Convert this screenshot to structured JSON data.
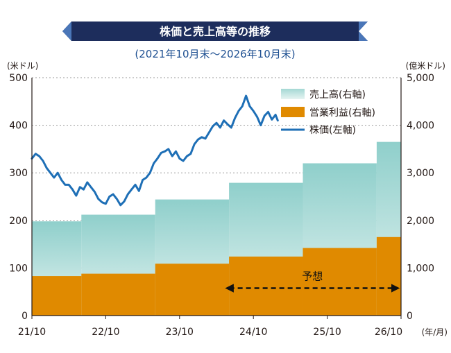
{
  "chart_data": {
    "type": "bar+line",
    "title": "株価と売上高等の推移",
    "subtitle": "(2021年10月末～2026年10月末)",
    "y_left_label": "(米ドル)",
    "y_right_label": "(億米ドル)",
    "x_unit_label": "(年/月)",
    "y_left_range": [
      0,
      500
    ],
    "y_right_range": [
      0,
      5000
    ],
    "y_left_ticks": [
      "0",
      "100",
      "200",
      "300",
      "400",
      "500"
    ],
    "y_right_ticks": [
      "0",
      "1,000",
      "2,000",
      "3,000",
      "4,000",
      "5,000"
    ],
    "x_ticks": [
      "21/10",
      "22/10",
      "23/10",
      "24/10",
      "25/10",
      "26/10"
    ],
    "x_range_years": [
      0,
      5
    ],
    "grid": "horizontal dotted",
    "legend": [
      "売上高(右軸)",
      "営業利益(右軸)",
      "株価(左軸)"
    ],
    "forecast_label": "予想",
    "forecast_range_years": [
      2.6,
      5
    ],
    "colors": {
      "title_bar": "#1d2d5c",
      "revenue_top": "#8fcfcb",
      "revenue_bottom": "#e6f4f2",
      "operating_income": "#e08a00",
      "stock": "#1e6fb6",
      "grid": "#9a9a9a"
    },
    "revenue": [
      {
        "start": 0.0,
        "end": 0.67,
        "value": 1980
      },
      {
        "start": 0.67,
        "end": 1.67,
        "value": 2120
      },
      {
        "start": 1.67,
        "end": 2.67,
        "value": 2440
      },
      {
        "start": 2.67,
        "end": 3.67,
        "value": 2790
      },
      {
        "start": 3.67,
        "end": 4.67,
        "value": 3200
      },
      {
        "start": 4.67,
        "end": 5.0,
        "value": 3650
      }
    ],
    "operating_income": [
      {
        "start": 0.0,
        "end": 0.67,
        "value": 830
      },
      {
        "start": 0.67,
        "end": 1.67,
        "value": 880
      },
      {
        "start": 1.67,
        "end": 2.67,
        "value": 1090
      },
      {
        "start": 2.67,
        "end": 3.67,
        "value": 1240
      },
      {
        "start": 3.67,
        "end": 4.67,
        "value": 1420
      },
      {
        "start": 4.67,
        "end": 5.0,
        "value": 1650
      }
    ],
    "stock": [
      {
        "x": 0.0,
        "y": 330
      },
      {
        "x": 0.05,
        "y": 340
      },
      {
        "x": 0.1,
        "y": 335
      },
      {
        "x": 0.15,
        "y": 325
      },
      {
        "x": 0.2,
        "y": 310
      },
      {
        "x": 0.25,
        "y": 300
      },
      {
        "x": 0.3,
        "y": 290
      },
      {
        "x": 0.35,
        "y": 300
      },
      {
        "x": 0.4,
        "y": 285
      },
      {
        "x": 0.45,
        "y": 275
      },
      {
        "x": 0.5,
        "y": 275
      },
      {
        "x": 0.55,
        "y": 265
      },
      {
        "x": 0.6,
        "y": 252
      },
      {
        "x": 0.65,
        "y": 270
      },
      {
        "x": 0.7,
        "y": 265
      },
      {
        "x": 0.75,
        "y": 280
      },
      {
        "x": 0.8,
        "y": 270
      },
      {
        "x": 0.85,
        "y": 260
      },
      {
        "x": 0.9,
        "y": 245
      },
      {
        "x": 0.95,
        "y": 238
      },
      {
        "x": 1.0,
        "y": 235
      },
      {
        "x": 1.05,
        "y": 250
      },
      {
        "x": 1.1,
        "y": 255
      },
      {
        "x": 1.15,
        "y": 245
      },
      {
        "x": 1.2,
        "y": 232
      },
      {
        "x": 1.25,
        "y": 240
      },
      {
        "x": 1.3,
        "y": 255
      },
      {
        "x": 1.35,
        "y": 265
      },
      {
        "x": 1.4,
        "y": 275
      },
      {
        "x": 1.45,
        "y": 262
      },
      {
        "x": 1.5,
        "y": 285
      },
      {
        "x": 1.55,
        "y": 290
      },
      {
        "x": 1.6,
        "y": 300
      },
      {
        "x": 1.65,
        "y": 320
      },
      {
        "x": 1.7,
        "y": 330
      },
      {
        "x": 1.75,
        "y": 342
      },
      {
        "x": 1.8,
        "y": 345
      },
      {
        "x": 1.85,
        "y": 350
      },
      {
        "x": 1.9,
        "y": 335
      },
      {
        "x": 1.95,
        "y": 345
      },
      {
        "x": 2.0,
        "y": 330
      },
      {
        "x": 2.05,
        "y": 325
      },
      {
        "x": 2.1,
        "y": 335
      },
      {
        "x": 2.15,
        "y": 340
      },
      {
        "x": 2.2,
        "y": 360
      },
      {
        "x": 2.25,
        "y": 370
      },
      {
        "x": 2.3,
        "y": 375
      },
      {
        "x": 2.35,
        "y": 372
      },
      {
        "x": 2.4,
        "y": 385
      },
      {
        "x": 2.45,
        "y": 398
      },
      {
        "x": 2.5,
        "y": 405
      },
      {
        "x": 2.55,
        "y": 395
      },
      {
        "x": 2.6,
        "y": 410
      },
      {
        "x": 2.65,
        "y": 402
      },
      {
        "x": 2.7,
        "y": 395
      },
      {
        "x": 2.75,
        "y": 415
      },
      {
        "x": 2.8,
        "y": 430
      },
      {
        "x": 2.85,
        "y": 440
      },
      {
        "x": 2.9,
        "y": 462
      },
      {
        "x": 2.95,
        "y": 440
      },
      {
        "x": 3.0,
        "y": 430
      },
      {
        "x": 3.05,
        "y": 418
      },
      {
        "x": 3.1,
        "y": 400
      },
      {
        "x": 3.15,
        "y": 420
      },
      {
        "x": 3.2,
        "y": 428
      },
      {
        "x": 3.25,
        "y": 412
      },
      {
        "x": 3.3,
        "y": 422
      },
      {
        "x": 3.33,
        "y": 410
      }
    ]
  }
}
